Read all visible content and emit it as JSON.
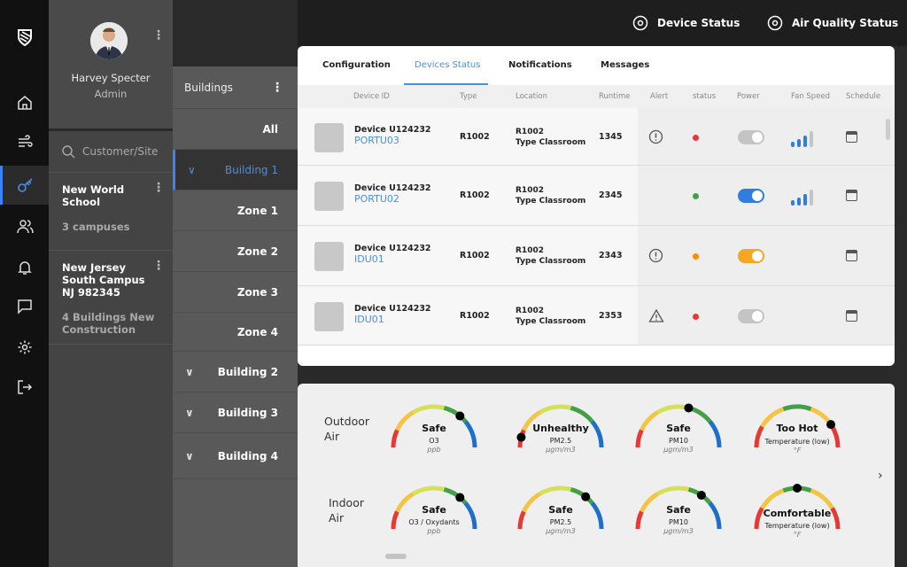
{
  "user": {
    "name": "Harvey Specter",
    "role": "Admin"
  },
  "nav": [
    "home",
    "air-flow",
    "key",
    "users",
    "bell",
    "chat",
    "settings",
    "logout"
  ],
  "search": {
    "placeholder": "Customer/Site"
  },
  "sites": [
    {
      "name": "New World School",
      "sub": "3 campuses"
    },
    {
      "name": "New Jersey South Campus NJ 982345",
      "sub": "4 Buildings New Construction"
    }
  ],
  "buildings": {
    "title": "Buildings",
    "items": [
      {
        "label": "All"
      },
      {
        "label": "Building 1",
        "selected": true,
        "expanded": true
      },
      {
        "label": "Zone 1"
      },
      {
        "label": "Zone 2"
      },
      {
        "label": "Zone 3"
      },
      {
        "label": "Zone 4"
      },
      {
        "label": "Building 2"
      },
      {
        "label": "Building 3"
      },
      {
        "label": "Building 4"
      }
    ]
  },
  "top": {
    "device_status": "Device Status",
    "air_quality_status": "Air Quality Status"
  },
  "tabs": [
    "Configuration",
    "Devices Status",
    "Notifications",
    "Messages"
  ],
  "active_tab": "Devices Status",
  "columns": [
    "Device ID",
    "Type",
    "Location",
    "Runtime",
    "Alert",
    "status",
    "Power",
    "Fan Speed",
    "Schedule"
  ],
  "devices": [
    {
      "name": "Device U124232",
      "id": "PORTU03",
      "type": "R1002",
      "loc1": "R1002",
      "loc2": "Type Classroom",
      "runtime": "1345",
      "alert": "alert-circle",
      "status": "#e53935",
      "power": "off",
      "fan": 2
    },
    {
      "name": "Device U124232",
      "id": "PORTU02",
      "type": "R1002",
      "loc1": "R1002",
      "loc2": "Type Classroom",
      "runtime": "2345",
      "alert": "",
      "status": "#43a047",
      "power": "on",
      "fan": 2
    },
    {
      "name": "Device U124232",
      "id": "IDU01",
      "type": "R1002",
      "loc1": "R1002",
      "loc2": "Type Classroom",
      "runtime": "2343",
      "alert": "alert-circle",
      "status": "#fb8c00",
      "power": "warn",
      "fan": 0
    },
    {
      "name": "Device U124232",
      "id": "IDU01",
      "type": "R1002",
      "loc1": "R1002",
      "loc2": "Type Classroom",
      "runtime": "2353",
      "alert": "warning-triangle",
      "status": "#e53935",
      "power": "off",
      "fan": 0
    }
  ],
  "colors": {
    "accent": "#4a90e2",
    "on": "#2f7de1",
    "warn": "#f5a623",
    "off": "#c4c4c4"
  },
  "air": {
    "outdoor_label": "Outdoor Air",
    "indoor_label": "Indoor Air",
    "outdoor": [
      {
        "status": "Safe",
        "name": "O3",
        "unit": "ppb",
        "kind": "aq",
        "level": 0.72
      },
      {
        "status": "Unhealthy",
        "name": "PM2.5",
        "unit": "µgm/m3",
        "kind": "aq",
        "level": 0.08
      },
      {
        "status": "Safe",
        "name": "PM10",
        "unit": "µgm/m3",
        "kind": "aq",
        "level": 0.58
      },
      {
        "status": "Too Hot",
        "name": "Temperature (low)",
        "unit": "°F",
        "kind": "temp",
        "level": 0.81
      }
    ],
    "indoor": [
      {
        "status": "Safe",
        "name": "O3 / Oxydants",
        "unit": "ppb",
        "kind": "aq",
        "level": 0.72
      },
      {
        "status": "Safe",
        "name": "PM2.5",
        "unit": "µgm/m3",
        "kind": "aq",
        "level": 0.71
      },
      {
        "status": "Safe",
        "name": "PM10",
        "unit": "µgm/m3",
        "kind": "aq",
        "level": 0.69
      },
      {
        "status": "Comfortable",
        "name": "Temperature (low)",
        "unit": "°F",
        "kind": "temp",
        "level": 0.5
      }
    ]
  }
}
